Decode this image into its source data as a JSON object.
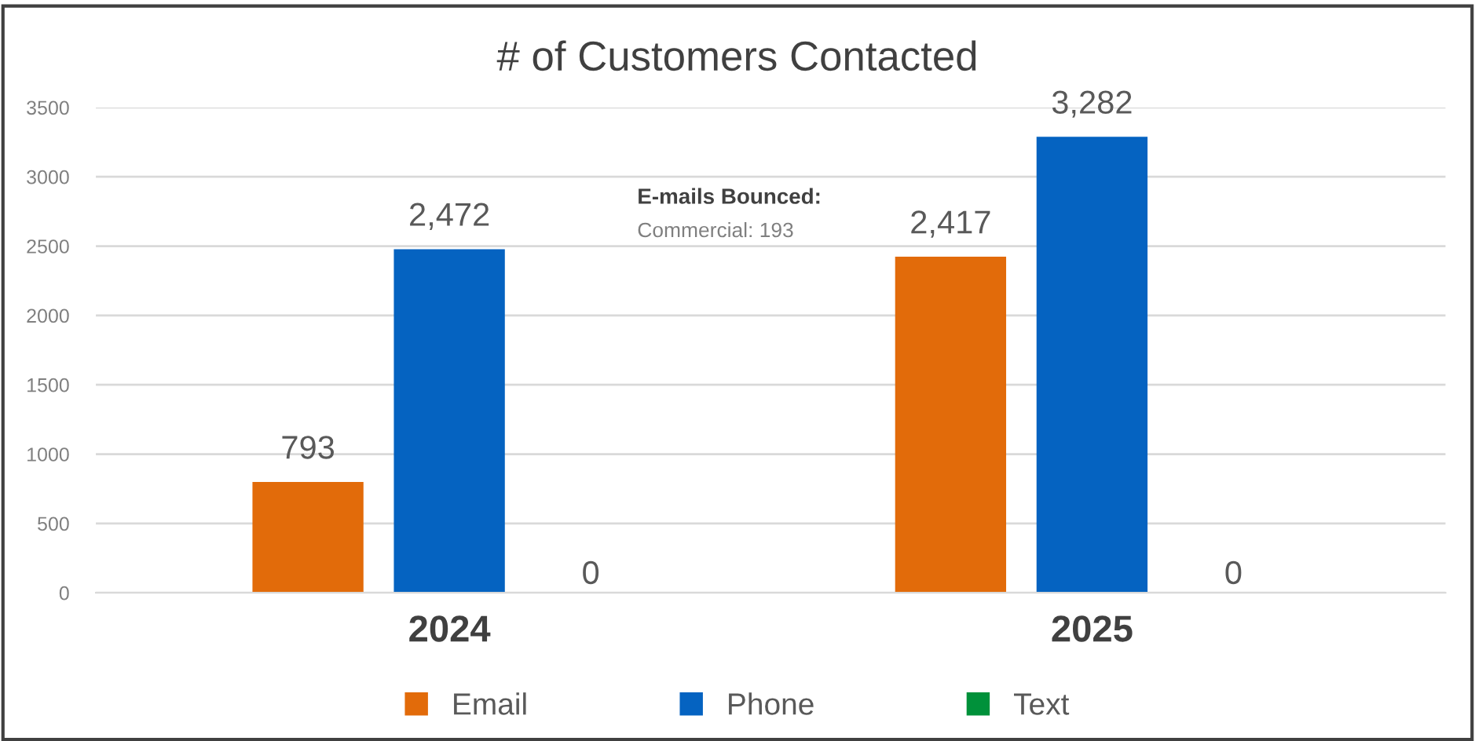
{
  "chart_data": {
    "type": "bar",
    "title": "# of Customers Contacted",
    "categories": [
      "2024",
      "2025"
    ],
    "series": [
      {
        "name": "Email",
        "color": "#e26b0a",
        "values": [
          793,
          2417
        ],
        "value_labels": [
          "793",
          "2,417"
        ]
      },
      {
        "name": "Phone",
        "color": "#0563c1",
        "values": [
          2472,
          3282
        ],
        "value_labels": [
          "2,472",
          "3,282"
        ]
      },
      {
        "name": "Text",
        "color": "#00913a",
        "values": [
          0,
          0
        ],
        "value_labels": [
          "0",
          "0"
        ]
      }
    ],
    "ylim": [
      0,
      3500
    ],
    "yticks": [
      0,
      500,
      1000,
      1500,
      2000,
      2500,
      3000,
      3500
    ],
    "grid": "y",
    "legend": "bottom",
    "annotations": [
      "E-mails Bounced:",
      "Commercial: 193"
    ]
  }
}
